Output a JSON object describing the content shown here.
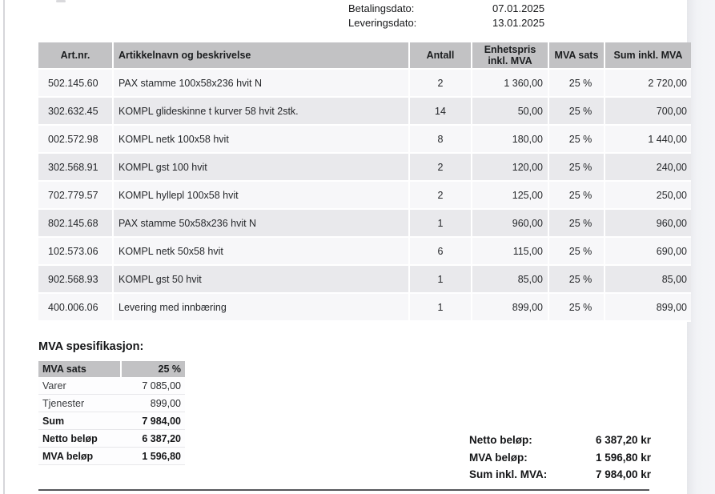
{
  "dates": {
    "payment_label": "Betalingsdato:",
    "payment_value": "07.01.2025",
    "delivery_label": "Leveringsdato:",
    "delivery_value": "13.01.2025"
  },
  "items_table": {
    "columns": [
      "Art.nr.",
      "Artikkelnavn og beskrivelse",
      "Antall",
      "Enhetspris inkl. MVA",
      "MVA sats",
      "Sum inkl. MVA"
    ],
    "rows": [
      [
        "502.145.60",
        "PAX stamme 100x58x236 hvit N",
        "2",
        "1 360,00",
        "25 %",
        "2 720,00"
      ],
      [
        "302.632.45",
        "KOMPL glideskinne t kurver  58 hvit 2stk.",
        "14",
        "50,00",
        "25 %",
        "700,00"
      ],
      [
        "002.572.98",
        "KOMPL netk 100x58 hvit",
        "8",
        "180,00",
        "25 %",
        "1 440,00"
      ],
      [
        "302.568.91",
        "KOMPL gst 100 hvit",
        "2",
        "120,00",
        "25 %",
        "240,00"
      ],
      [
        "702.779.57",
        "KOMPL hyllepl 100x58 hvit",
        "2",
        "125,00",
        "25 %",
        "250,00"
      ],
      [
        "802.145.68",
        "PAX stamme 50x58x236 hvit N",
        "1",
        "960,00",
        "25 %",
        "960,00"
      ],
      [
        "102.573.06",
        "KOMPL netk 50x58 hvit",
        "6",
        "115,00",
        "25 %",
        "690,00"
      ],
      [
        "902.568.93",
        "KOMPL gst 50 hvit",
        "1",
        "85,00",
        "25 %",
        "85,00"
      ],
      [
        "400.006.06",
        "Levering med innbæring",
        "1",
        "899,00",
        "25 %",
        "899,00"
      ]
    ]
  },
  "mva_spec": {
    "title": "MVA spesifikasjon:",
    "header": {
      "label": "MVA sats",
      "value": "25 %"
    },
    "rows": [
      {
        "label": "Varer",
        "value": "7 085,00",
        "bold": false
      },
      {
        "label": "Tjenester",
        "value": "899,00",
        "bold": false
      },
      {
        "label": "Sum",
        "value": "7 984,00",
        "bold": true
      },
      {
        "label": "Netto beløp",
        "value": "6 387,20",
        "bold": true
      },
      {
        "label": "MVA beløp",
        "value": "1 596,80",
        "bold": true
      }
    ]
  },
  "totals": {
    "rows": [
      {
        "label": "Netto beløp:",
        "value": "6 387,20 kr"
      },
      {
        "label": "MVA beløp:",
        "value": "1 596,80 kr"
      },
      {
        "label": "Sum inkl. MVA:",
        "value": "7 984,00 kr"
      }
    ]
  },
  "colors": {
    "table_header_bg": "#c2c2c4",
    "row_odd_bg": "#f7f7f9",
    "row_even_bg": "#e9e9ec",
    "bottom_rule": "#55565a"
  }
}
